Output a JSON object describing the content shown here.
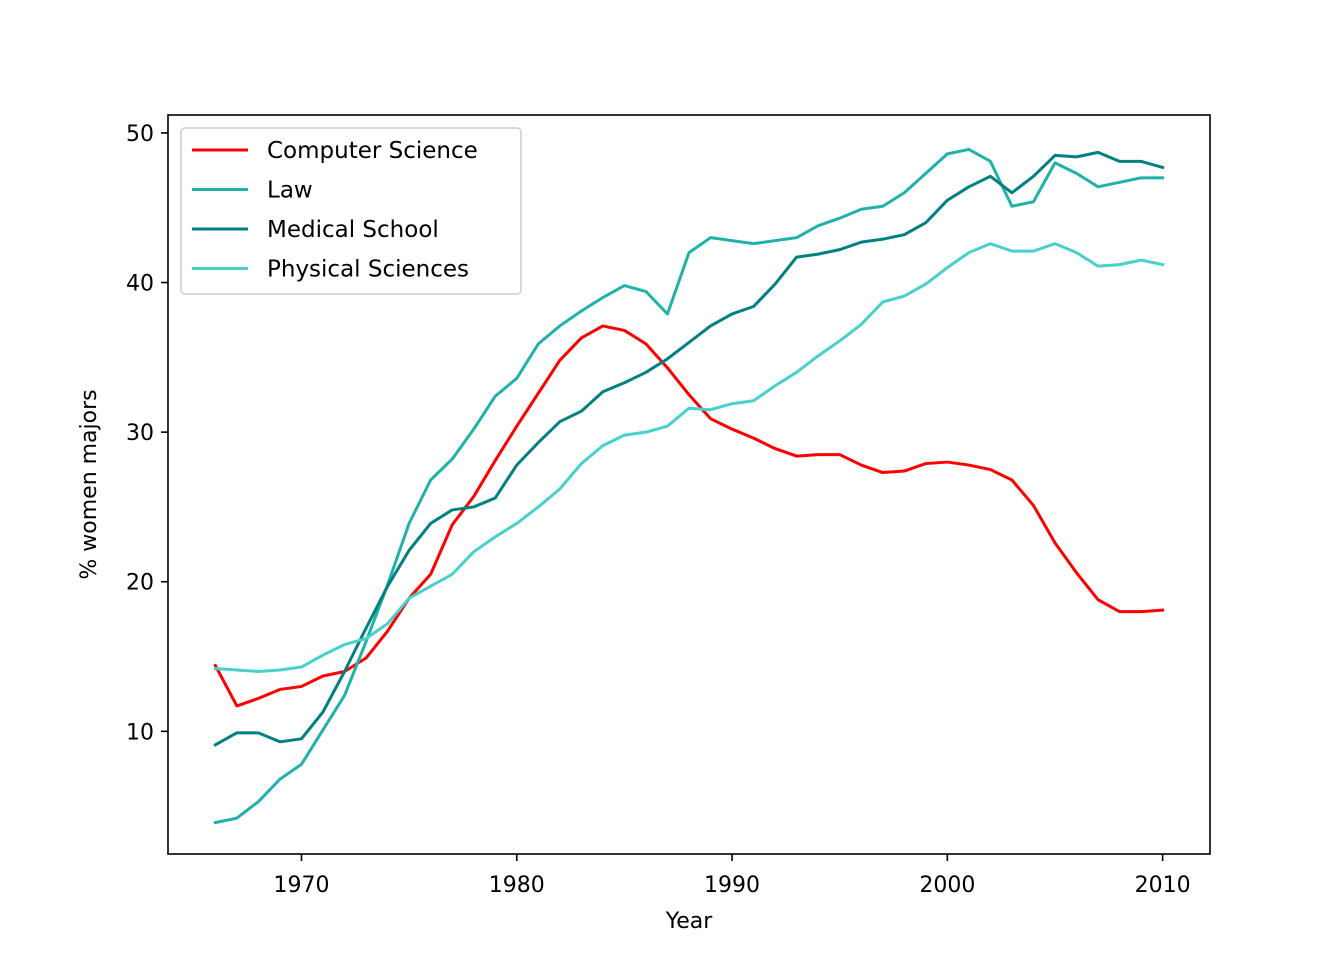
{
  "chart_data": {
    "type": "line",
    "title": "",
    "xlabel": "Year",
    "ylabel": "% women majors",
    "xlim": [
      1963.8,
      2012.2
    ],
    "ylim": [
      1.8,
      51.2
    ],
    "xticks": [
      1970,
      1980,
      1990,
      2000,
      2010
    ],
    "yticks": [
      10,
      20,
      30,
      40,
      50
    ],
    "grid": false,
    "legend_position": "top-left",
    "x": [
      1966,
      1967,
      1968,
      1969,
      1970,
      1971,
      1972,
      1973,
      1974,
      1975,
      1976,
      1977,
      1978,
      1979,
      1980,
      1981,
      1982,
      1983,
      1984,
      1985,
      1986,
      1987,
      1988,
      1989,
      1990,
      1991,
      1992,
      1993,
      1994,
      1995,
      1996,
      1997,
      1998,
      1999,
      2000,
      2001,
      2002,
      2003,
      2004,
      2005,
      2006,
      2007,
      2008,
      2009,
      2010
    ],
    "series": [
      {
        "name": "Computer Science",
        "color": "#ff0000",
        "values": [
          14.4,
          11.7,
          12.2,
          12.8,
          13.0,
          13.7,
          14.0,
          14.9,
          16.7,
          18.9,
          20.5,
          23.8,
          25.7,
          28.1,
          30.4,
          32.6,
          34.8,
          36.3,
          37.1,
          36.8,
          35.9,
          34.3,
          32.5,
          30.9,
          30.2,
          29.6,
          28.9,
          28.4,
          28.5,
          28.5,
          27.8,
          27.3,
          27.4,
          27.9,
          28.0,
          27.8,
          27.5,
          26.8,
          25.1,
          22.6,
          20.6,
          18.8,
          18.0,
          18.0,
          18.1
        ]
      },
      {
        "name": "Law",
        "color": "#20b2aa",
        "values": [
          3.9,
          4.2,
          5.3,
          6.8,
          7.8,
          10.1,
          12.4,
          16.0,
          19.8,
          23.9,
          26.8,
          28.2,
          30.2,
          32.4,
          33.6,
          35.9,
          37.1,
          38.1,
          39.0,
          39.8,
          39.4,
          37.9,
          42.0,
          43.0,
          42.8,
          42.6,
          42.8,
          43.0,
          43.8,
          44.3,
          44.9,
          45.1,
          46.0,
          47.3,
          48.6,
          48.9,
          48.1,
          45.1,
          45.4,
          48.0,
          47.3,
          46.4,
          46.7,
          47.0,
          47.0
        ]
      },
      {
        "name": "Medical School",
        "color": "#008080",
        "values": [
          9.1,
          9.9,
          9.9,
          9.3,
          9.5,
          11.3,
          14.0,
          16.9,
          19.7,
          22.1,
          23.9,
          24.8,
          25.0,
          25.6,
          27.8,
          29.3,
          30.7,
          31.4,
          32.7,
          33.3,
          34.0,
          34.9,
          36.0,
          37.1,
          37.9,
          38.4,
          39.9,
          41.7,
          41.9,
          42.2,
          42.7,
          42.9,
          43.2,
          44.0,
          45.5,
          46.4,
          47.1,
          46.0,
          47.1,
          48.5,
          48.4,
          48.7,
          48.1,
          48.1,
          47.7
        ]
      },
      {
        "name": "Physical Sciences",
        "color": "#48d1cc",
        "values": [
          14.2,
          14.1,
          14.0,
          14.1,
          14.3,
          15.1,
          15.8,
          16.2,
          17.2,
          18.9,
          19.7,
          20.5,
          22.0,
          23.0,
          23.9,
          25.0,
          26.2,
          27.9,
          29.1,
          29.8,
          30.0,
          30.4,
          31.6,
          31.5,
          31.9,
          32.1,
          33.1,
          34.0,
          35.1,
          36.1,
          37.2,
          38.7,
          39.1,
          39.9,
          41.0,
          42.0,
          42.6,
          42.1,
          42.1,
          42.6,
          42.0,
          41.1,
          41.2,
          41.5,
          41.2
        ]
      }
    ]
  }
}
